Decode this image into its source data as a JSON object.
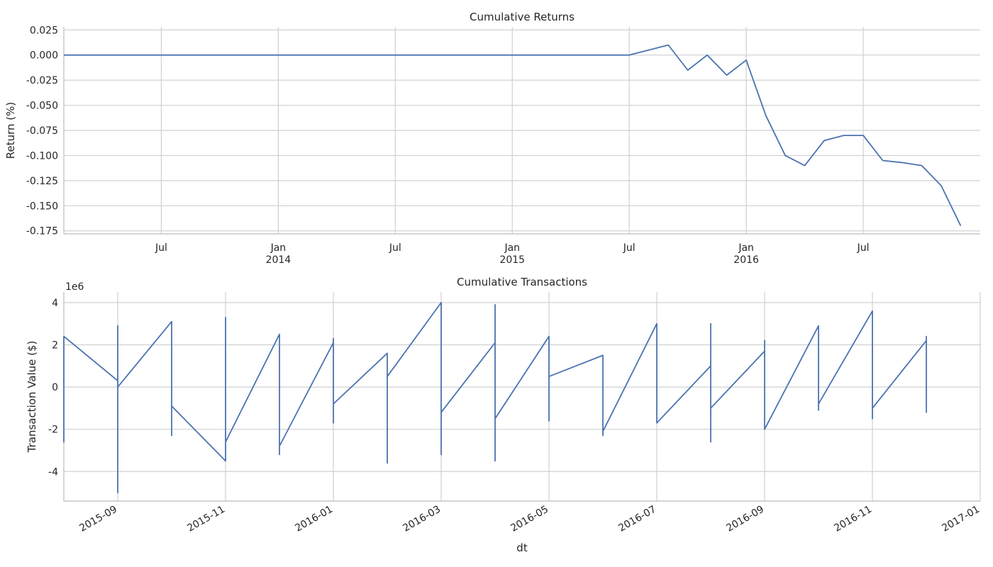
{
  "chart_data": [
    {
      "type": "line",
      "title": "Cumulative Returns",
      "ylabel": "Return (%)",
      "color": "#4c72b0",
      "grid": true,
      "x": [
        "2013-02",
        "2015-07",
        "2015-08",
        "2015-09",
        "2015-10",
        "2015-11",
        "2015-12",
        "2016-01",
        "2016-02",
        "2016-03",
        "2016-04",
        "2016-05",
        "2016-06",
        "2016-07",
        "2016-08",
        "2016-09",
        "2016-10",
        "2016-11",
        "2016-12"
      ],
      "values": [
        0,
        0,
        0.005,
        0.01,
        -0.015,
        0.0,
        -0.02,
        -0.005,
        -0.06,
        -0.1,
        -0.11,
        -0.085,
        -0.08,
        -0.08,
        -0.105,
        -0.107,
        -0.11,
        -0.13,
        -0.17
      ],
      "xlim": [
        "2013-02",
        "2017-01"
      ],
      "xticks": [
        {
          "value": "2013-07",
          "label": "Jul"
        },
        {
          "value": "2014-01",
          "label": "Jan\n2014"
        },
        {
          "value": "2014-07",
          "label": "Jul"
        },
        {
          "value": "2015-01",
          "label": "Jan\n2015"
        },
        {
          "value": "2015-07",
          "label": "Jul"
        },
        {
          "value": "2016-01",
          "label": "Jan\n2016"
        },
        {
          "value": "2016-07",
          "label": "Jul"
        }
      ],
      "ylim": [
        -0.178,
        0.028
      ],
      "yticks": [
        0.025,
        {
          "value": 0,
          "label": "0.000"
        },
        -0.025,
        {
          "value": -0.05,
          "label": "-0.050"
        },
        -0.075,
        {
          "value": -0.1,
          "label": "-0.100"
        },
        -0.125,
        {
          "value": -0.15,
          "label": "-0.150"
        },
        -0.175
      ]
    },
    {
      "type": "line",
      "title": "Cumulative Transactions",
      "ylabel": "Transaction Value ($)",
      "xlabel": "dt",
      "y_offset_label": "1e6",
      "color": "#4c72b0",
      "grid": true,
      "x": [
        "2015-08",
        "2015-08",
        "2015-08",
        "2015-08",
        "2015-09",
        "2015-09",
        "2015-09",
        "2015-09",
        "2015-09",
        "2015-10",
        "2015-10",
        "2015-10",
        "2015-10",
        "2015-11",
        "2015-11",
        "2015-11",
        "2015-11",
        "2015-12",
        "2015-12",
        "2015-12",
        "2015-12",
        "2016-01",
        "2016-01",
        "2016-01",
        "2016-01",
        "2016-02",
        "2016-02",
        "2016-02",
        "2016-02",
        "2016-03",
        "2016-03",
        "2016-03",
        "2016-03",
        "2016-04",
        "2016-04",
        "2016-04",
        "2016-04",
        "2016-05",
        "2016-05",
        "2016-05",
        "2016-05",
        "2016-06",
        "2016-06",
        "2016-06",
        "2016-06",
        "2016-07",
        "2016-07",
        "2016-07",
        "2016-07",
        "2016-08",
        "2016-08",
        "2016-08",
        "2016-08",
        "2016-09",
        "2016-09",
        "2016-09",
        "2016-09",
        "2016-10",
        "2016-10",
        "2016-10",
        "2016-10",
        "2016-11",
        "2016-11",
        "2016-11",
        "2016-11",
        "2016-12",
        "2016-12",
        "2016-12",
        "2016-12",
        "2016-12",
        "2016-12",
        "2016-12"
      ],
      "values": [
        0,
        1.0,
        -2.6,
        2.4,
        0.3,
        -1.3,
        2.9,
        -5.0,
        0,
        3.1,
        -2.3,
        2.2,
        -0.9,
        -3.5,
        1.8,
        3.3,
        -2.6,
        2.5,
        -3.2,
        0.3,
        -2.8,
        2.1,
        -1.7,
        2.3,
        -0.8,
        1.6,
        -2.9,
        -3.6,
        0.5,
        4.0,
        -3.2,
        1.9,
        -1.2,
        2.1,
        -3.5,
        3.9,
        -1.5,
        2.4,
        -1.6,
        2.2,
        0.5,
        1.5,
        -2.3,
        1.3,
        -2.1,
        3.0,
        -1.2,
        2.0,
        -1.7,
        1.0,
        -2.6,
        3.0,
        -1.0,
        1.7,
        -0.7,
        2.2,
        -2.0,
        2.9,
        -1.1,
        1.5,
        -0.8,
        3.6,
        -1.5,
        2.4,
        -1.0,
        2.2,
        -1.2,
        2.4,
        0.7,
        1.0,
        -0.7,
        0.5
      ],
      "xlim": [
        "2015-08",
        "2017-01"
      ],
      "xticks": [
        "2015-09",
        "2015-11",
        "2016-01",
        "2016-03",
        "2016-05",
        "2016-07",
        "2016-09",
        "2016-11",
        "2017-01"
      ],
      "ylim": [
        -5.4,
        4.5
      ],
      "yticks": [
        -4,
        -2,
        0,
        2,
        4
      ]
    }
  ]
}
